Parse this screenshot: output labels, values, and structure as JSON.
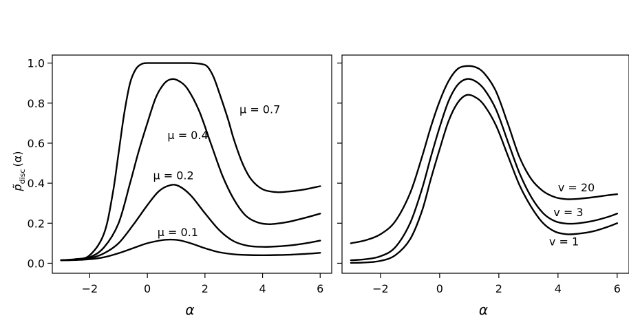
{
  "chart_data": [
    {
      "type": "line",
      "title": "",
      "xlabel": "α",
      "ylabel": {
        "base": "p̃",
        "sub": "disc",
        "arg": "(α)"
      },
      "xlim": [
        -3.3,
        6.4
      ],
      "ylim": [
        -0.05,
        1.04
      ],
      "xticks": [
        -2,
        0,
        2,
        4,
        6
      ],
      "xtick_labels": [
        "−2",
        "0",
        "2",
        "4",
        "6"
      ],
      "yticks": [
        0.0,
        0.2,
        0.4,
        0.6,
        0.8,
        1.0
      ],
      "ytick_labels": [
        "0.0",
        "0.2",
        "0.4",
        "0.6",
        "0.8",
        "1.0"
      ],
      "series": [
        {
          "name": "μ = 0.7",
          "points": [
            [
              -3,
              0.015
            ],
            [
              -2.5,
              0.02
            ],
            [
              -2,
              0.04
            ],
            [
              -1.5,
              0.15
            ],
            [
              -1.2,
              0.35
            ],
            [
              -1,
              0.55
            ],
            [
              -0.8,
              0.75
            ],
            [
              -0.6,
              0.9
            ],
            [
              -0.4,
              0.97
            ],
            [
              -0.2,
              0.995
            ],
            [
              0,
              1.0
            ],
            [
              0.5,
              1.0
            ],
            [
              1,
              1.0
            ],
            [
              1.5,
              1.0
            ],
            [
              1.9,
              0.995
            ],
            [
              2.1,
              0.98
            ],
            [
              2.3,
              0.93
            ],
            [
              2.5,
              0.85
            ],
            [
              2.8,
              0.72
            ],
            [
              3.0,
              0.62
            ],
            [
              3.3,
              0.5
            ],
            [
              3.6,
              0.42
            ],
            [
              4.0,
              0.37
            ],
            [
              4.5,
              0.355
            ],
            [
              5.0,
              0.36
            ],
            [
              5.5,
              0.37
            ],
            [
              6.0,
              0.385
            ]
          ]
        },
        {
          "name": "μ = 0.4",
          "points": [
            [
              -3,
              0.015
            ],
            [
              -2.5,
              0.02
            ],
            [
              -2,
              0.03
            ],
            [
              -1.5,
              0.08
            ],
            [
              -1,
              0.2
            ],
            [
              -0.6,
              0.4
            ],
            [
              -0.3,
              0.56
            ],
            [
              0,
              0.7
            ],
            [
              0.3,
              0.83
            ],
            [
              0.6,
              0.9
            ],
            [
              0.85,
              0.92
            ],
            [
              1.1,
              0.91
            ],
            [
              1.4,
              0.87
            ],
            [
              1.8,
              0.76
            ],
            [
              2.2,
              0.6
            ],
            [
              2.6,
              0.44
            ],
            [
              3.0,
              0.32
            ],
            [
              3.4,
              0.24
            ],
            [
              3.8,
              0.205
            ],
            [
              4.2,
              0.195
            ],
            [
              4.6,
              0.2
            ],
            [
              5.0,
              0.21
            ],
            [
              5.5,
              0.228
            ],
            [
              6.0,
              0.248
            ]
          ]
        },
        {
          "name": "μ = 0.2",
          "points": [
            [
              -3,
              0.015
            ],
            [
              -2.5,
              0.017
            ],
            [
              -2,
              0.025
            ],
            [
              -1.5,
              0.05
            ],
            [
              -1,
              0.1
            ],
            [
              -0.5,
              0.19
            ],
            [
              0,
              0.29
            ],
            [
              0.4,
              0.36
            ],
            [
              0.8,
              0.39
            ],
            [
              1.1,
              0.385
            ],
            [
              1.5,
              0.34
            ],
            [
              2,
              0.25
            ],
            [
              2.5,
              0.165
            ],
            [
              3,
              0.11
            ],
            [
              3.5,
              0.087
            ],
            [
              4,
              0.082
            ],
            [
              4.5,
              0.084
            ],
            [
              5,
              0.09
            ],
            [
              5.5,
              0.1
            ],
            [
              6,
              0.113
            ]
          ]
        },
        {
          "name": "μ = 0.1",
          "points": [
            [
              -3,
              0.015
            ],
            [
              -2.5,
              0.016
            ],
            [
              -2,
              0.02
            ],
            [
              -1.5,
              0.03
            ],
            [
              -1,
              0.05
            ],
            [
              -0.5,
              0.075
            ],
            [
              0,
              0.1
            ],
            [
              0.5,
              0.115
            ],
            [
              0.8,
              0.118
            ],
            [
              1.1,
              0.115
            ],
            [
              1.5,
              0.1
            ],
            [
              2,
              0.075
            ],
            [
              2.5,
              0.055
            ],
            [
              3,
              0.045
            ],
            [
              3.5,
              0.041
            ],
            [
              4,
              0.04
            ],
            [
              4.5,
              0.041
            ],
            [
              5,
              0.043
            ],
            [
              5.5,
              0.047
            ],
            [
              6,
              0.052
            ]
          ]
        }
      ],
      "annotations": [
        {
          "text": "μ = 0.7",
          "x": 3.2,
          "y": 0.75
        },
        {
          "text": "μ = 0.4",
          "x": 0.7,
          "y": 0.62
        },
        {
          "text": "μ = 0.2",
          "x": 0.2,
          "y": 0.42
        },
        {
          "text": "μ = 0.1",
          "x": 0.35,
          "y": 0.135
        }
      ]
    },
    {
      "type": "line",
      "title": "",
      "xlabel": "α",
      "ylabel": null,
      "xlim": [
        -3.3,
        6.4
      ],
      "ylim": [
        -0.05,
        1.04
      ],
      "xticks": [
        -2,
        0,
        2,
        4,
        6
      ],
      "xtick_labels": [
        "−2",
        "0",
        "2",
        "4",
        "6"
      ],
      "yticks": [
        0.0,
        0.2,
        0.4,
        0.6,
        0.8,
        1.0
      ],
      "ytick_labels": [],
      "series": [
        {
          "name": "v = 20",
          "points": [
            [
              -3,
              0.1
            ],
            [
              -2.5,
              0.115
            ],
            [
              -2,
              0.145
            ],
            [
              -1.5,
              0.21
            ],
            [
              -1,
              0.35
            ],
            [
              -0.6,
              0.53
            ],
            [
              -0.3,
              0.68
            ],
            [
              0,
              0.81
            ],
            [
              0.3,
              0.91
            ],
            [
              0.6,
              0.97
            ],
            [
              0.9,
              0.985
            ],
            [
              1.2,
              0.98
            ],
            [
              1.5,
              0.95
            ],
            [
              1.9,
              0.86
            ],
            [
              2.3,
              0.7
            ],
            [
              2.7,
              0.53
            ],
            [
              3.1,
              0.42
            ],
            [
              3.5,
              0.36
            ],
            [
              3.9,
              0.33
            ],
            [
              4.3,
              0.32
            ],
            [
              4.7,
              0.322
            ],
            [
              5.2,
              0.33
            ],
            [
              5.7,
              0.34
            ],
            [
              6,
              0.345
            ]
          ]
        },
        {
          "name": "v = 3",
          "points": [
            [
              -3,
              0.015
            ],
            [
              -2.5,
              0.02
            ],
            [
              -2,
              0.035
            ],
            [
              -1.5,
              0.08
            ],
            [
              -1,
              0.2
            ],
            [
              -0.6,
              0.37
            ],
            [
              -0.3,
              0.53
            ],
            [
              0,
              0.68
            ],
            [
              0.3,
              0.81
            ],
            [
              0.6,
              0.89
            ],
            [
              0.9,
              0.92
            ],
            [
              1.2,
              0.91
            ],
            [
              1.5,
              0.87
            ],
            [
              1.9,
              0.77
            ],
            [
              2.3,
              0.61
            ],
            [
              2.7,
              0.45
            ],
            [
              3.1,
              0.33
            ],
            [
              3.5,
              0.25
            ],
            [
              3.9,
              0.21
            ],
            [
              4.3,
              0.198
            ],
            [
              4.7,
              0.2
            ],
            [
              5.2,
              0.212
            ],
            [
              5.7,
              0.232
            ],
            [
              6,
              0.248
            ]
          ]
        },
        {
          "name": "v = 1",
          "points": [
            [
              -3,
              0.002
            ],
            [
              -2.5,
              0.004
            ],
            [
              -2,
              0.012
            ],
            [
              -1.5,
              0.04
            ],
            [
              -1,
              0.12
            ],
            [
              -0.6,
              0.26
            ],
            [
              -0.3,
              0.42
            ],
            [
              0,
              0.57
            ],
            [
              0.3,
              0.71
            ],
            [
              0.6,
              0.8
            ],
            [
              0.9,
              0.84
            ],
            [
              1.2,
              0.83
            ],
            [
              1.5,
              0.79
            ],
            [
              1.9,
              0.69
            ],
            [
              2.3,
              0.54
            ],
            [
              2.7,
              0.39
            ],
            [
              3.1,
              0.28
            ],
            [
              3.5,
              0.2
            ],
            [
              3.9,
              0.158
            ],
            [
              4.3,
              0.145
            ],
            [
              4.7,
              0.148
            ],
            [
              5.2,
              0.16
            ],
            [
              5.7,
              0.183
            ],
            [
              6,
              0.2
            ]
          ]
        }
      ],
      "annotations": [
        {
          "text": "v = 20",
          "x": 4.0,
          "y": 0.36
        },
        {
          "text": "v = 3",
          "x": 3.85,
          "y": 0.235
        },
        {
          "text": "v = 1",
          "x": 3.7,
          "y": 0.09
        }
      ]
    }
  ]
}
